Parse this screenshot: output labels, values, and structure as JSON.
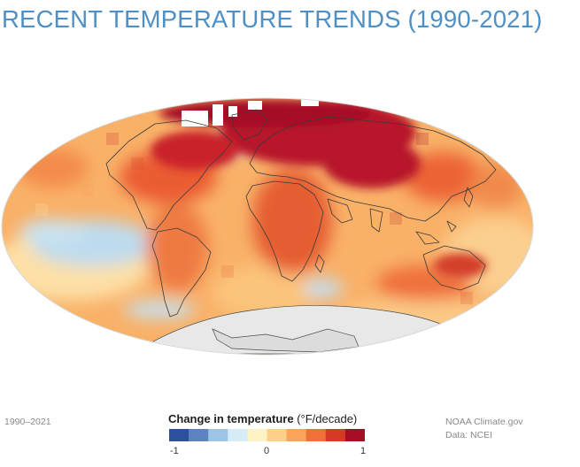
{
  "title": "RECENT TEMPERATURE TRENDS (1990-2021)",
  "period_label": "1990–2021",
  "legend": {
    "title_bold": "Change in temperature",
    "title_unit": " (°F/decade)",
    "min_label": "-1",
    "mid_label": "0",
    "max_label": "1",
    "colors": [
      "#2c4f9e",
      "#5a83c0",
      "#9cc4e4",
      "#d5ebf5",
      "#fdf3c4",
      "#fdd08a",
      "#f9a458",
      "#ee7238",
      "#d53a24",
      "#a50f26"
    ]
  },
  "credit": {
    "source": "NOAA Climate.gov",
    "data": "Data: NCEI"
  },
  "colors": {
    "title": "#4e90c6",
    "ocean_base": "#f9b168",
    "antarctica": "#e8e8e8",
    "coastline": "#3a3a3a"
  }
}
